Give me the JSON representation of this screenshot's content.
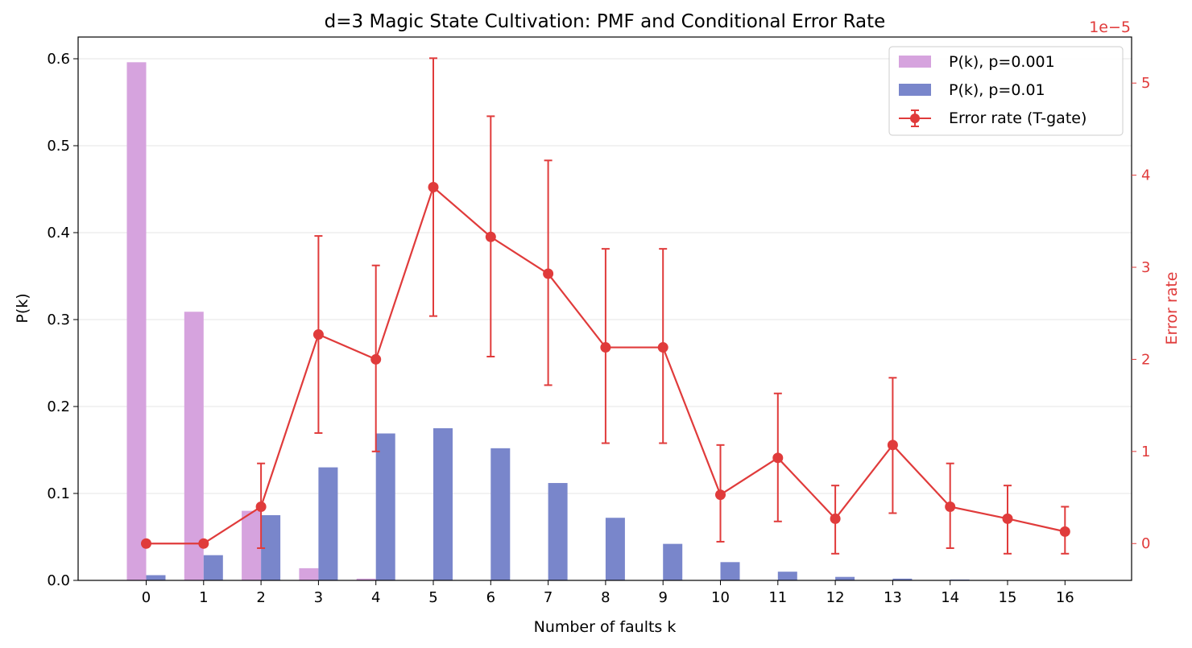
{
  "chart_data": {
    "type": "bar",
    "title": "d=3 Magic State Cultivation: PMF and Conditional Error Rate",
    "xlabel": "Number of faults k",
    "ylabel": "P(k)",
    "ylabel_right": "Error rate",
    "right_axis_offset_text": "1e−5",
    "categories": [
      "0",
      "1",
      "2",
      "3",
      "4",
      "5",
      "6",
      "7",
      "8",
      "9",
      "10",
      "11",
      "12",
      "13",
      "14",
      "15",
      "16"
    ],
    "ylim": [
      0,
      0.625
    ],
    "yticks": [
      "0.0",
      "0.1",
      "0.2",
      "0.3",
      "0.4",
      "0.5",
      "0.6"
    ],
    "ylim_right": [
      -0.4,
      5.5
    ],
    "yticks_right": [
      "0",
      "1",
      "2",
      "3",
      "4",
      "5"
    ],
    "grid": "horizontal",
    "legend_position": "top-right",
    "colors": {
      "p001": "#d6a3de",
      "p01": "#7986cb",
      "error": "#e03b3b"
    },
    "series": [
      {
        "name": "P(k), p=0.001",
        "kind": "bar",
        "values": [
          0.596,
          0.309,
          0.08,
          0.014,
          0.002,
          0,
          0,
          0,
          0,
          0,
          0,
          0,
          0,
          0,
          0,
          0,
          0
        ]
      },
      {
        "name": "P(k), p=0.01",
        "kind": "bar",
        "values": [
          0.006,
          0.029,
          0.075,
          0.13,
          0.169,
          0.175,
          0.152,
          0.112,
          0.072,
          0.042,
          0.021,
          0.01,
          0.004,
          0.002,
          0.001,
          0,
          0
        ]
      },
      {
        "name": "Error rate (T-gate)",
        "kind": "line-errorbar",
        "axis": "right",
        "values": [
          0.0,
          0.0,
          0.4,
          2.27,
          2.0,
          3.87,
          3.33,
          2.93,
          2.13,
          2.13,
          0.53,
          0.93,
          0.27,
          1.07,
          0.4,
          0.27,
          0.13
        ],
        "lower": [
          0.0,
          0.0,
          -0.05,
          1.2,
          1.0,
          2.47,
          2.03,
          1.72,
          1.09,
          1.09,
          0.02,
          0.24,
          -0.11,
          0.33,
          -0.05,
          -0.11,
          -0.11
        ],
        "upper": [
          0.0,
          0.0,
          0.87,
          3.34,
          3.02,
          5.27,
          4.64,
          4.16,
          3.2,
          3.2,
          1.07,
          1.63,
          0.63,
          1.8,
          0.87,
          0.63,
          0.4
        ]
      }
    ]
  }
}
